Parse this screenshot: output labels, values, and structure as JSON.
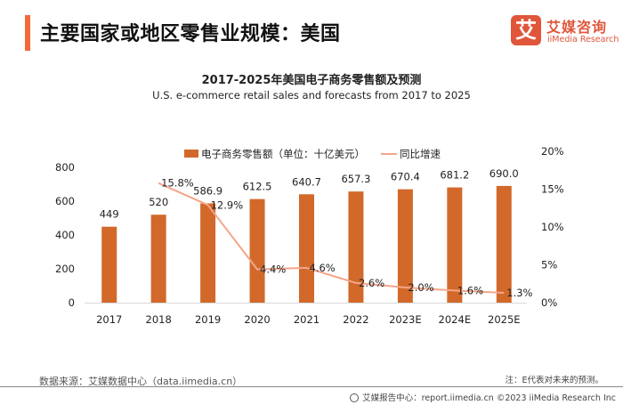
{
  "header": {
    "title": "主要国家或地区零售业规模：美国",
    "logo": {
      "icon_char": "艾",
      "name_cn": "艾媒咨询",
      "name_en": "iiMedia Research"
    },
    "accent_color": "#f26a3b"
  },
  "chart_data": {
    "type": "bar",
    "title": "2017-2025年美国电子商务零售额及预测",
    "subtitle": "U.S. e-commerce retail sales and forecasts from 2017 to 2025",
    "categories": [
      "2017",
      "2018",
      "2019",
      "2020",
      "2021",
      "2022",
      "2023E",
      "2024E",
      "2025E"
    ],
    "series": [
      {
        "name": "电子商务零售额（单位：十亿美元）",
        "type": "bar",
        "axis": "left",
        "color": "#d2692a",
        "values": [
          449,
          520,
          586.9,
          612.5,
          640.7,
          657.3,
          670.4,
          681.2,
          690.0
        ],
        "labels": [
          "449",
          "520",
          "586.9",
          "612.5",
          "640.7",
          "657.3",
          "670.4",
          "681.2",
          "690.0"
        ]
      },
      {
        "name": "同比增速",
        "type": "line",
        "axis": "right",
        "color": "#f4a58a",
        "values": [
          null,
          15.8,
          12.9,
          4.4,
          4.6,
          2.6,
          2.0,
          1.6,
          1.3
        ],
        "labels": [
          null,
          "15.8%",
          "12.9%",
          "4.4%",
          "4.6%",
          "2.6%",
          "2.0%",
          "1.6%",
          "1.3%"
        ]
      }
    ],
    "y_left": {
      "range": [
        0,
        800
      ],
      "ticks": [
        "0",
        "200",
        "400",
        "600",
        "800"
      ],
      "tick_values": [
        0,
        200,
        400,
        600,
        800
      ]
    },
    "y_right": {
      "range": [
        0,
        20
      ],
      "ticks": [
        "0%",
        "5%",
        "10%",
        "15%",
        "20%"
      ],
      "tick_values": [
        0,
        5,
        10,
        15,
        20
      ]
    },
    "grid": false,
    "legend_position": "top-center"
  },
  "footer": {
    "source": "数据来源：艾媒数据中心（data.iimedia.cn）",
    "note": "注：E代表对未来的预测。",
    "copyright": "艾媒报告中心：report.iimedia.cn  ©2023  iiMedia Research  Inc"
  }
}
